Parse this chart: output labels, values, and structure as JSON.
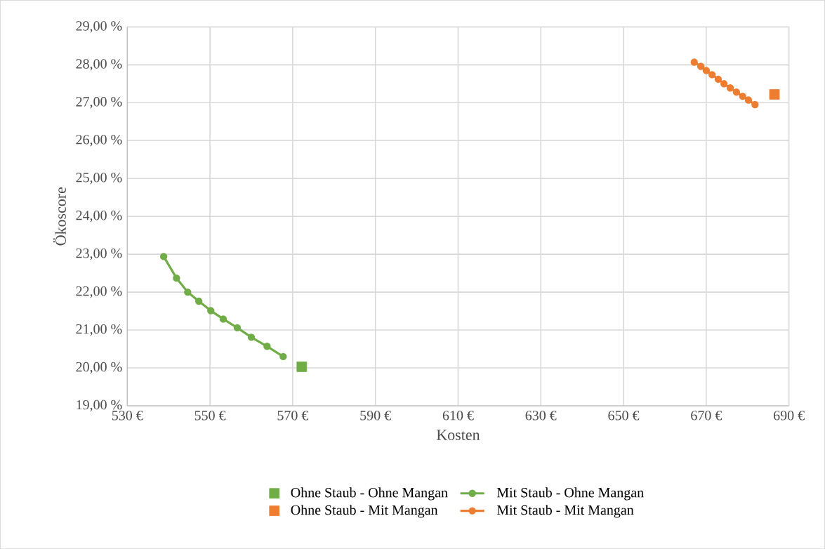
{
  "chart_data": {
    "type": "line",
    "xlabel": "Kosten",
    "ylabel": "Ökoscore",
    "xlim": [
      530,
      690
    ],
    "ylim": [
      19,
      29
    ],
    "xticks": [
      {
        "value": 530,
        "label": "530 €"
      },
      {
        "value": 550,
        "label": "550 €"
      },
      {
        "value": 570,
        "label": "570 €"
      },
      {
        "value": 590,
        "label": "590 €"
      },
      {
        "value": 610,
        "label": "610 €"
      },
      {
        "value": 630,
        "label": "630 €"
      },
      {
        "value": 650,
        "label": "650 €"
      },
      {
        "value": 670,
        "label": "670 €"
      },
      {
        "value": 690,
        "label": "690 €"
      }
    ],
    "yticks": [
      {
        "value": 19,
        "label": "19,00 %"
      },
      {
        "value": 20,
        "label": "20,00 %"
      },
      {
        "value": 21,
        "label": "21,00 %"
      },
      {
        "value": 22,
        "label": "22,00 %"
      },
      {
        "value": 23,
        "label": "23,00 %"
      },
      {
        "value": 24,
        "label": "24,00 %"
      },
      {
        "value": 25,
        "label": "25,00 %"
      },
      {
        "value": 26,
        "label": "26,00 %"
      },
      {
        "value": 27,
        "label": "27,00 %"
      },
      {
        "value": 28,
        "label": "28,00 %"
      },
      {
        "value": 29,
        "label": "29,00 %"
      }
    ],
    "grid": true,
    "legend": "bottom",
    "series": [
      {
        "name": "Ohne Staub - Ohne Mangan",
        "type": "scatter",
        "marker": "square",
        "color": "#70ad47",
        "x": [
          572.2
        ],
        "values": [
          20.03
        ]
      },
      {
        "name": "Mit Staub - Ohne Mangan",
        "marker": "circle",
        "color": "#70ad47",
        "x": [
          538.8,
          541.9,
          544.6,
          547.3,
          550.2,
          553.2,
          556.6,
          560.0,
          563.8,
          567.7
        ],
        "values": [
          22.94,
          22.37,
          22.0,
          21.76,
          21.51,
          21.29,
          21.06,
          20.81,
          20.57,
          20.3
        ]
      },
      {
        "name": "Ohne Staub - Mit Mangan",
        "type": "scatter",
        "marker": "square",
        "color": "#ed7d31",
        "x": [
          686.5
        ],
        "values": [
          27.22
        ]
      },
      {
        "name": "Mit Staub - Mit Mangan",
        "marker": "circle",
        "color": "#ed7d31",
        "x": [
          667.1,
          668.7,
          670.0,
          671.4,
          672.9,
          674.3,
          675.8,
          677.3,
          678.8,
          680.2,
          681.8
        ],
        "values": [
          28.07,
          27.96,
          27.85,
          27.74,
          27.62,
          27.5,
          27.39,
          27.28,
          27.17,
          27.07,
          26.95
        ]
      }
    ]
  }
}
